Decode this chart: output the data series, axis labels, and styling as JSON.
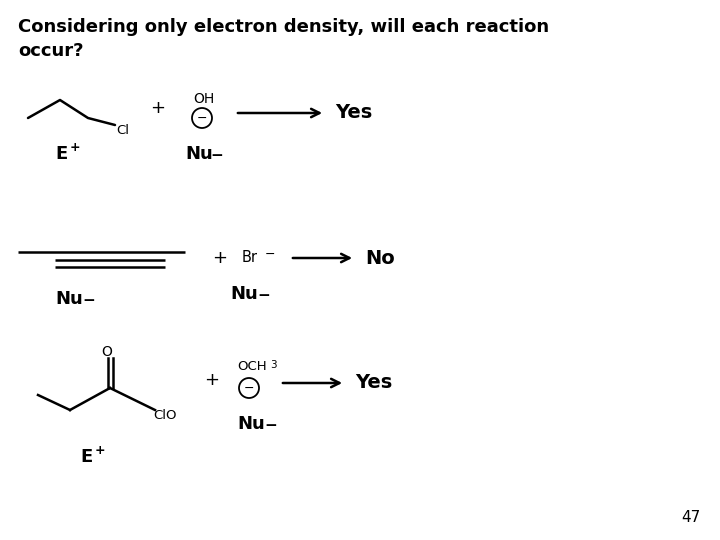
{
  "title_line1": "Considering only electron density, will each reaction",
  "title_line2": "occur?",
  "background_color": "#ffffff",
  "text_color": "#000000",
  "page_number": "47",
  "figsize": [
    7.2,
    5.4
  ],
  "dpi": 100
}
